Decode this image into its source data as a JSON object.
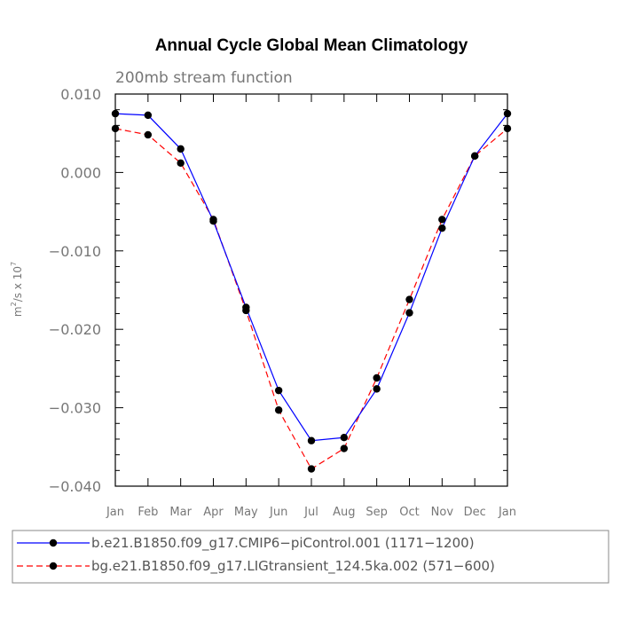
{
  "chart_data": {
    "type": "line",
    "title": "Annual Cycle Global Mean Climatology",
    "subtitle": "200mb stream function",
    "ylabel_base": "m",
    "ylabel_exp1": "2",
    "ylabel_mid": "/s x 10",
    "ylabel_exp2": "7",
    "ylim": [
      -0.04,
      0.01
    ],
    "yticks": [
      0.01,
      0.0,
      -0.01,
      -0.02,
      -0.03,
      -0.04
    ],
    "ytick_labels": [
      "0.010",
      "0.000",
      "−0.010",
      "−0.020",
      "−0.030",
      "−0.040"
    ],
    "categories": [
      "Jan",
      "Feb",
      "Mar",
      "Apr",
      "May",
      "Jun",
      "Jul",
      "Aug",
      "Sep",
      "Oct",
      "Nov",
      "Dec",
      "Jan"
    ],
    "series": [
      {
        "name": "b.e21.B1850.f09_g17.CMIP6−piControl.001 (1171−1200)",
        "color": "#0000ff",
        "dash": "solid",
        "values": [
          0.0075,
          0.0073,
          0.003,
          -0.0062,
          -0.0172,
          -0.0278,
          -0.0342,
          -0.0338,
          -0.0276,
          -0.0179,
          -0.0071,
          0.0021,
          0.0075
        ]
      },
      {
        "name": "bg.e21.B1850.f09_g17.LIGtransient_124.5ka.002 (571−600)",
        "color": "#ff0000",
        "dash": "dashed",
        "values": [
          0.0056,
          0.0048,
          0.0012,
          -0.006,
          -0.0176,
          -0.0303,
          -0.0378,
          -0.0352,
          -0.0262,
          -0.0162,
          -0.006,
          0.0021,
          0.0056
        ]
      }
    ],
    "legend_position": "bottom"
  }
}
